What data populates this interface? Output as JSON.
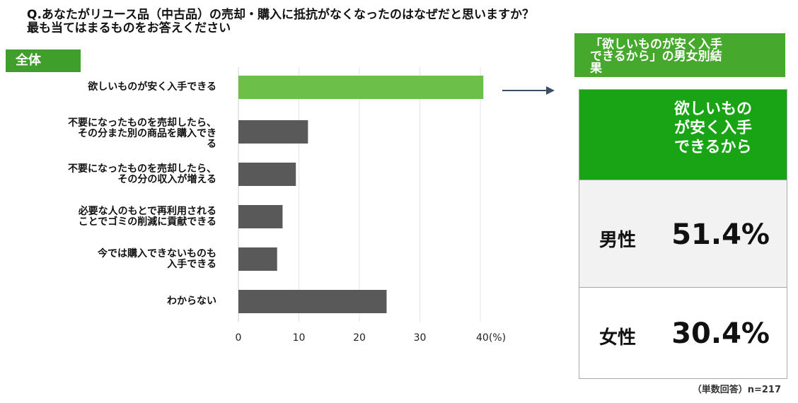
{
  "question": {
    "line1": "Q.あなたがリユース品（中古品）の売却・購入に抵抗がなくなったのはなぜだと思いますか？",
    "line2": "最も当てはまるものをお答えください"
  },
  "segment_label": "全体",
  "chart_data": {
    "type": "bar",
    "orientation": "horizontal",
    "categories": [
      [
        "欲しいものが安く入手できる"
      ],
      [
        "不要になったものを売却したら、",
        "その分また別の商品を購入でき",
        "る"
      ],
      [
        "不要になったものを売却したら、",
        "その分の収入が増える"
      ],
      [
        "必要な人のもとで再利用される",
        "ことでゴミの削減に貢献できる"
      ],
      [
        "今では購入できないものも",
        "入手できる"
      ],
      [
        "わからない"
      ]
    ],
    "values": [
      40.5,
      11.5,
      9.5,
      7.3,
      6.4,
      24.5
    ],
    "bar_colors": [
      "#6cc04a",
      "#595959",
      "#595959",
      "#595959",
      "#595959",
      "#595959"
    ],
    "xlim": [
      0,
      40
    ],
    "ticks": [
      "0",
      "10",
      "20",
      "30",
      "40(%)"
    ],
    "grid": true
  },
  "callout": {
    "lines": [
      "「欲しいものが安く入手",
      "できるから」の男女別結",
      "果"
    ]
  },
  "result_table": {
    "header_lines": [
      "欲しいもの",
      "が安く入手",
      "できるから"
    ],
    "rows": [
      {
        "label": "男性",
        "value": "51.4%"
      },
      {
        "label": "女性",
        "value": "30.4%"
      }
    ]
  },
  "note": "（単数回答）n=217",
  "colors": {
    "highlight_bar": "#6cc04a",
    "dark_bar": "#595959",
    "badge_green": "#3f9f2a",
    "header_green": "#18a414"
  }
}
